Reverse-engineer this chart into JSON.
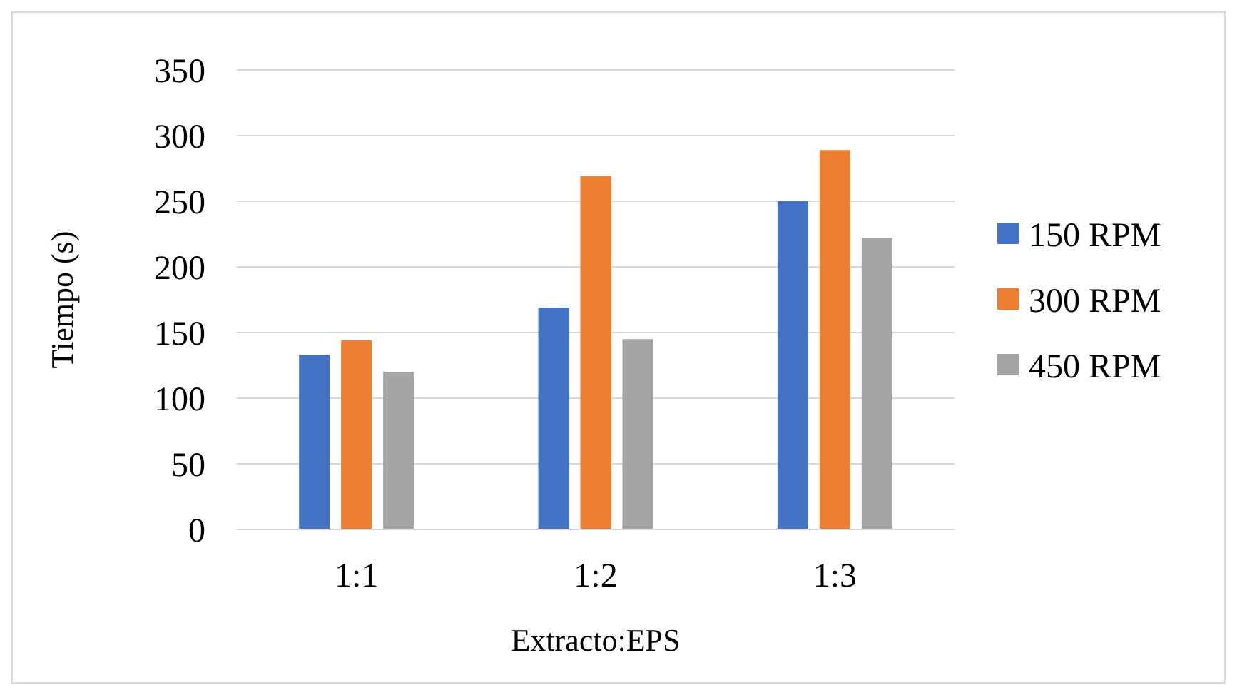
{
  "chart_data": {
    "type": "bar",
    "xlabel": "Extracto:EPS",
    "ylabel": "Tiempo (s)",
    "categories": [
      "1:1",
      "1:2",
      "1:3"
    ],
    "series": [
      {
        "name": "150 RPM",
        "color": "#4472c4",
        "values": [
          133,
          169,
          250
        ]
      },
      {
        "name": "300 RPM",
        "color": "#ed7d31",
        "values": [
          144,
          269,
          289
        ]
      },
      {
        "name": "450 RPM",
        "color": "#a5a5a5",
        "values": [
          120,
          145,
          222
        ]
      }
    ],
    "ylim": [
      0,
      350
    ],
    "yticks": [
      0,
      50,
      100,
      150,
      200,
      250,
      300,
      350
    ],
    "grid": "y",
    "legend": "right"
  }
}
